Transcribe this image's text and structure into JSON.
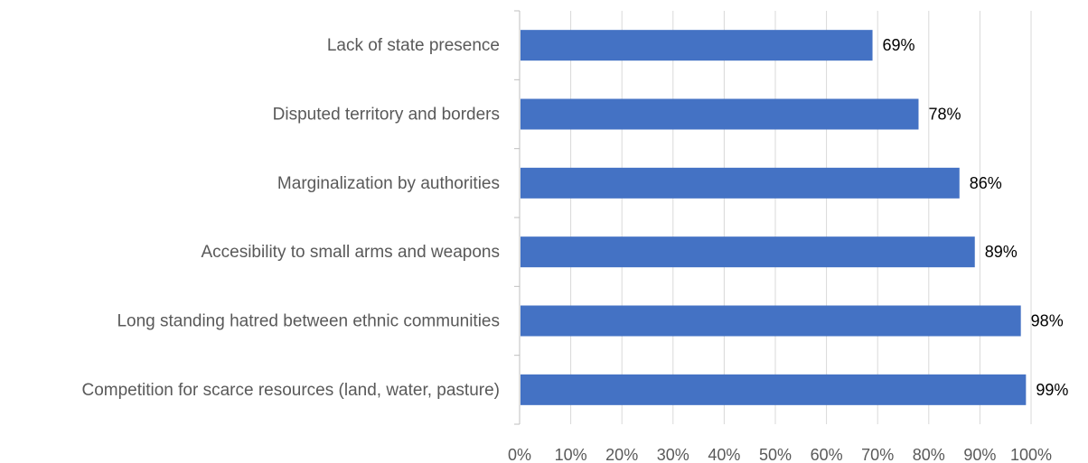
{
  "chart_data": {
    "type": "bar",
    "orientation": "horizontal",
    "title": "",
    "xlabel": "",
    "ylabel": "",
    "categories": [
      "Lack of state presence",
      "Disputed territory and borders",
      "Marginalization by authorities",
      "Accesibility to small arms and weapons",
      "Long standing hatred between ethnic communities",
      "Competition for scarce resources (land, water, pasture)"
    ],
    "values": [
      69,
      78,
      86,
      89,
      98,
      99
    ],
    "data_labels": [
      "69%",
      "78%",
      "86%",
      "89%",
      "98%",
      "99%"
    ],
    "xlim": [
      0,
      100
    ],
    "x_ticks": [
      0,
      10,
      20,
      30,
      40,
      50,
      60,
      70,
      80,
      90,
      100
    ],
    "x_tick_labels": [
      "0%",
      "10%",
      "20%",
      "30%",
      "40%",
      "50%",
      "60%",
      "70%",
      "80%",
      "90%",
      "100%"
    ],
    "grid": "vertical",
    "legend": "none",
    "colors": {
      "bar": "#4472C4",
      "grid": "#D9D9D9",
      "axis": "#BFBFBF",
      "text": "#595959",
      "data_label": "#000000"
    }
  }
}
